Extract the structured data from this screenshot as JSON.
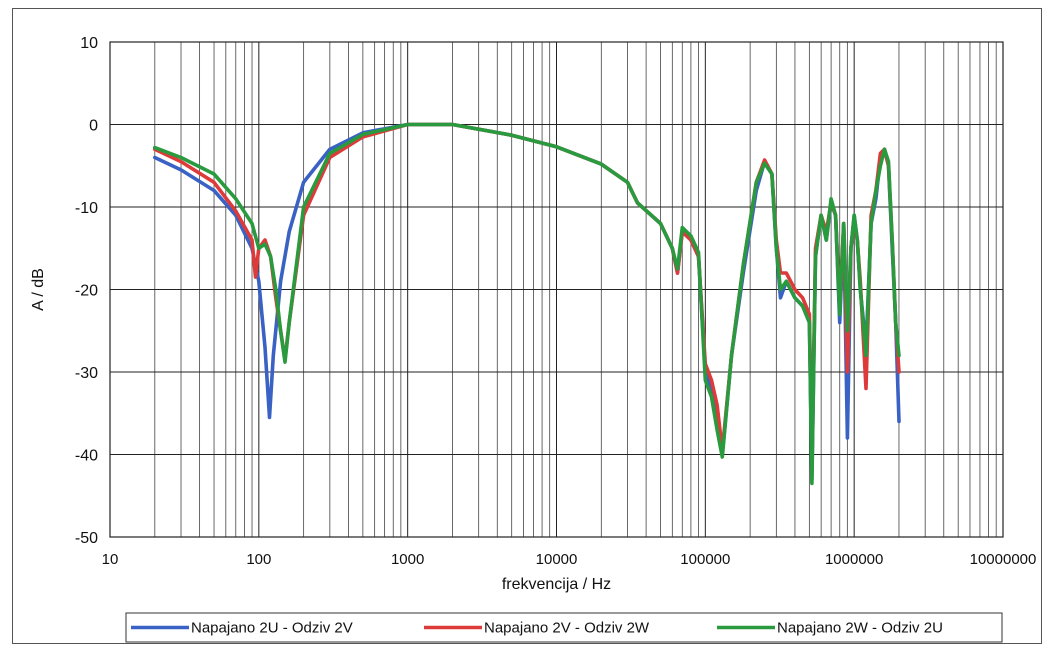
{
  "chart_data": {
    "type": "line",
    "title": "",
    "xlabel": "frekvencija / Hz",
    "ylabel": "A / dB",
    "x_scale": "log",
    "xlim": [
      10,
      10000000
    ],
    "ylim": [
      -50,
      10
    ],
    "x_ticks": [
      10,
      100,
      1000,
      10000,
      100000,
      1000000,
      10000000
    ],
    "x_tick_labels": [
      "10",
      "100",
      "1000",
      "10000",
      "100000",
      "1000000",
      "10000000"
    ],
    "y_ticks": [
      10,
      0,
      -10,
      -20,
      -30,
      -40,
      -50
    ],
    "y_tick_labels": [
      "10",
      "0",
      "-10",
      "-20",
      "-30",
      "-40",
      "-50"
    ],
    "grid": true,
    "legend_position": "bottom",
    "series": [
      {
        "name": "Napajano 2U - Odziv 2V",
        "color": "#3a62c4",
        "x": [
          20,
          30,
          50,
          70,
          90,
          100,
          110,
          118,
          125,
          140,
          160,
          200,
          300,
          500,
          1000,
          2000,
          5000,
          10000,
          20000,
          30000,
          35000,
          50000,
          60000,
          65000,
          70000,
          80000,
          90000,
          100000,
          110000,
          120000,
          130000,
          150000,
          180000,
          220000,
          250000,
          280000,
          300000,
          320000,
          350000,
          400000,
          450000,
          500000,
          520000,
          550000,
          600000,
          650000,
          700000,
          750000,
          800000,
          850000,
          900000,
          950000,
          1000000,
          1050000,
          1100000,
          1200000,
          1300000,
          1400000,
          1500000,
          1600000,
          1700000,
          1800000,
          1900000,
          2000000
        ],
        "y": [
          -4,
          -5.5,
          -8,
          -11,
          -15,
          -19,
          -27,
          -35.5,
          -28,
          -19,
          -13,
          -7,
          -3,
          -1,
          0,
          0,
          -1.3,
          -2.7,
          -4.8,
          -7,
          -9.5,
          -12,
          -15,
          -18,
          -13,
          -14,
          -16,
          -30,
          -32,
          -35,
          -40,
          -28,
          -18,
          -8,
          -4.5,
          -6,
          -15,
          -21,
          -19,
          -21,
          -22,
          -24,
          -43,
          -16,
          -11,
          -14,
          -9.5,
          -11,
          -24,
          -12,
          -38,
          -15,
          -11,
          -14,
          -20,
          -27,
          -12,
          -9,
          -4,
          -3,
          -5,
          -15,
          -24,
          -36
        ]
      },
      {
        "name": "Napajano 2V - Odziv 2W",
        "color": "#dd3a3a",
        "x": [
          20,
          30,
          50,
          70,
          90,
          95,
          100,
          110,
          120,
          130,
          140,
          150,
          160,
          200,
          300,
          500,
          1000,
          2000,
          5000,
          10000,
          20000,
          30000,
          35000,
          50000,
          60000,
          65000,
          70000,
          80000,
          90000,
          100000,
          110000,
          120000,
          130000,
          150000,
          180000,
          220000,
          250000,
          280000,
          300000,
          320000,
          350000,
          400000,
          450000,
          500000,
          520000,
          550000,
          600000,
          650000,
          700000,
          750000,
          800000,
          850000,
          900000,
          950000,
          1000000,
          1050000,
          1100000,
          1200000,
          1300000,
          1400000,
          1500000,
          1600000,
          1700000,
          1800000,
          1900000,
          2000000
        ],
        "y": [
          -3,
          -4.5,
          -7,
          -10.5,
          -14,
          -18.5,
          -15,
          -14,
          -16,
          -21,
          -25,
          -28.5,
          -24,
          -11,
          -4,
          -1.5,
          0,
          0,
          -1.3,
          -2.7,
          -4.8,
          -7,
          -9.5,
          -12,
          -15,
          -18,
          -13,
          -14,
          -16,
          -29,
          -31,
          -34,
          -39.5,
          -28,
          -17,
          -7,
          -4.3,
          -6,
          -14,
          -18,
          -18,
          -20,
          -21,
          -23,
          -41,
          -15,
          -11,
          -13,
          -9.5,
          -11,
          -22,
          -12,
          -30,
          -15,
          -11.5,
          -14,
          -19,
          -32,
          -11,
          -8,
          -3.5,
          -3,
          -5,
          -14,
          -24,
          -30
        ]
      },
      {
        "name": "Napajano 2W - Odziv 2U",
        "color": "#2a9a3e",
        "x": [
          20,
          30,
          50,
          70,
          90,
          100,
          110,
          120,
          130,
          140,
          150,
          160,
          200,
          300,
          500,
          1000,
          2000,
          5000,
          10000,
          20000,
          30000,
          35000,
          50000,
          60000,
          65000,
          70000,
          80000,
          90000,
          100000,
          110000,
          120000,
          130000,
          150000,
          180000,
          220000,
          250000,
          280000,
          300000,
          320000,
          350000,
          400000,
          450000,
          500000,
          520000,
          550000,
          600000,
          650000,
          700000,
          750000,
          800000,
          850000,
          900000,
          950000,
          1000000,
          1050000,
          1100000,
          1200000,
          1300000,
          1400000,
          1500000,
          1600000,
          1700000,
          1800000,
          1900000,
          2000000
        ],
        "y": [
          -2.8,
          -4,
          -6,
          -9,
          -12,
          -15,
          -14.5,
          -16,
          -20,
          -25,
          -28.8,
          -24,
          -10,
          -3.5,
          -1.2,
          0,
          0,
          -1.3,
          -2.7,
          -4.8,
          -7,
          -9.5,
          -12,
          -15,
          -17.5,
          -12.5,
          -13.5,
          -15.5,
          -31,
          -33,
          -37,
          -40.3,
          -28,
          -17,
          -7,
          -4.7,
          -6,
          -15,
          -20,
          -19,
          -21,
          -22,
          -24,
          -43.5,
          -16,
          -11,
          -14,
          -9,
          -11,
          -23,
          -12,
          -25,
          -15,
          -11,
          -14,
          -20,
          -28,
          -12,
          -8,
          -5,
          -3,
          -4.5,
          -14,
          -24,
          -28
        ]
      }
    ]
  }
}
